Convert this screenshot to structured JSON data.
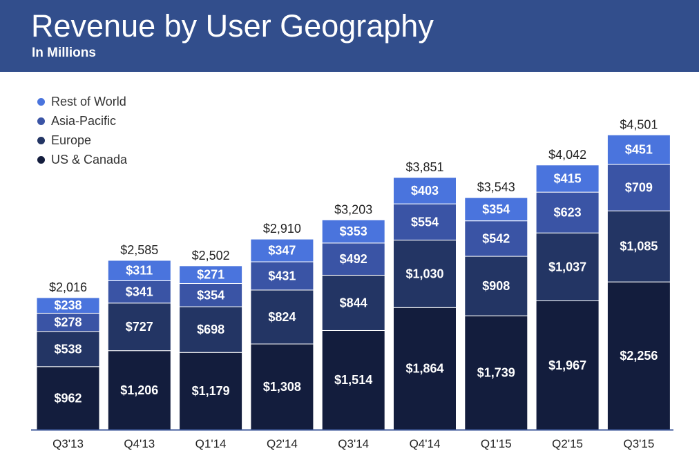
{
  "header": {
    "title": "Revenue by User Geography",
    "subtitle": "In Millions"
  },
  "chart_data": {
    "type": "bar",
    "stacked": true,
    "title": "Revenue by User Geography",
    "subtitle": "In Millions",
    "categories": [
      "Q3'13",
      "Q4'13",
      "Q1'14",
      "Q2'14",
      "Q3'14",
      "Q4'14",
      "Q1'15",
      "Q2'15",
      "Q3'15"
    ],
    "series": [
      {
        "name": "US & Canada",
        "color": "#131d3d",
        "values": [
          962,
          1206,
          1179,
          1308,
          1514,
          1864,
          1739,
          1967,
          2256
        ],
        "labels": [
          "$962",
          "$1,206",
          "$1,179",
          "$1,308",
          "$1,514",
          "$1,864",
          "$1,739",
          "$1,967",
          "$2,256"
        ]
      },
      {
        "name": "Europe",
        "color": "#233564",
        "values": [
          538,
          727,
          698,
          824,
          844,
          1030,
          908,
          1037,
          1085
        ],
        "labels": [
          "$538",
          "$727",
          "$698",
          "$824",
          "$844",
          "$1,030",
          "$908",
          "$1,037",
          "$1,085"
        ]
      },
      {
        "name": "Asia-Pacific",
        "color": "#3a54a5",
        "values": [
          278,
          341,
          354,
          431,
          492,
          554,
          542,
          623,
          709
        ],
        "labels": [
          "$278",
          "$341",
          "$354",
          "$431",
          "$492",
          "$554",
          "$542",
          "$623",
          "$709"
        ]
      },
      {
        "name": "Rest of World",
        "color": "#4a74dd",
        "values": [
          238,
          311,
          271,
          347,
          353,
          403,
          354,
          415,
          451
        ],
        "labels": [
          "$238",
          "$311",
          "$271",
          "$347",
          "$353",
          "$403",
          "$354",
          "$415",
          "$451"
        ]
      }
    ],
    "totals": [
      2016,
      2585,
      2502,
      2910,
      3203,
      3851,
      3543,
      4042,
      4501
    ],
    "total_labels": [
      "$2,016",
      "$2,585",
      "$2,502",
      "$2,910",
      "$3,203",
      "$3,851",
      "$3,543",
      "$4,042",
      "$4,501"
    ],
    "legend_order": [
      "Rest of World",
      "Asia-Pacific",
      "Europe",
      "US & Canada"
    ],
    "legend": "top-left",
    "grid": false
  }
}
